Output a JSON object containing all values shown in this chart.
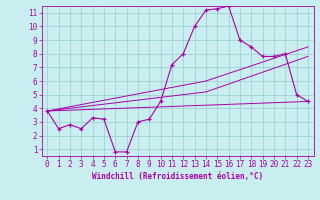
{
  "xlabel": "Windchill (Refroidissement éolien,°C)",
  "bg_color": "#c8eef0",
  "line_color": "#aa00aa",
  "grid_color": "#99cccc",
  "xlim": [
    -0.5,
    23.5
  ],
  "ylim": [
    0.5,
    11.5
  ],
  "xticks": [
    0,
    1,
    2,
    3,
    4,
    5,
    6,
    7,
    8,
    9,
    10,
    11,
    12,
    13,
    14,
    15,
    16,
    17,
    18,
    19,
    20,
    21,
    22,
    23
  ],
  "yticks": [
    1,
    2,
    3,
    4,
    5,
    6,
    7,
    8,
    9,
    10,
    11
  ],
  "series1_x": [
    0,
    1,
    2,
    3,
    4,
    5,
    6,
    7,
    8,
    9,
    10,
    11,
    12,
    13,
    14,
    15,
    16,
    17,
    18,
    19,
    20,
    21,
    22,
    23
  ],
  "series1_y": [
    3.8,
    2.5,
    2.8,
    2.5,
    3.3,
    3.2,
    0.8,
    0.8,
    3.0,
    3.2,
    4.5,
    7.2,
    8.0,
    10.0,
    11.2,
    11.3,
    11.5,
    9.0,
    8.5,
    7.8,
    7.8,
    8.0,
    5.0,
    4.5
  ],
  "series2_x": [
    0,
    23
  ],
  "series2_y": [
    3.8,
    4.5
  ],
  "series3_x": [
    0,
    14,
    23
  ],
  "series3_y": [
    3.8,
    5.2,
    7.8
  ],
  "series4_x": [
    0,
    14,
    23
  ],
  "series4_y": [
    3.8,
    6.0,
    8.5
  ],
  "tick_fontsize": 5.5,
  "xlabel_fontsize": 5.5
}
